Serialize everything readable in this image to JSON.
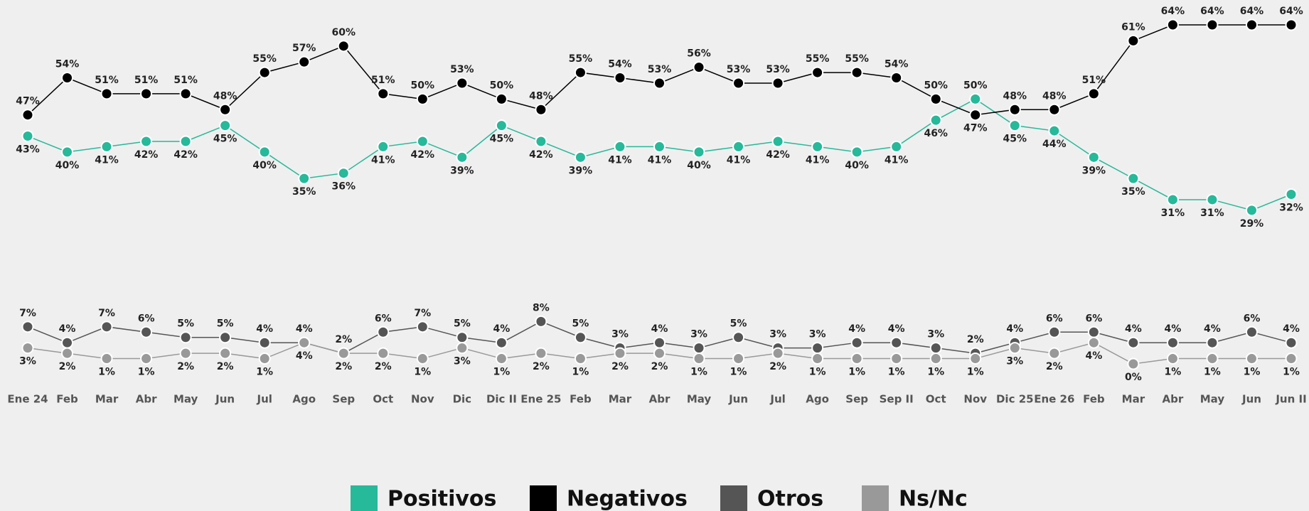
{
  "chart_data": {
    "type": "line",
    "categories": [
      "Ene 24",
      "Feb",
      "Mar",
      "Abr",
      "May",
      "Jun",
      "Jul",
      "Ago",
      "Sep",
      "Oct",
      "Nov",
      "Dic",
      "Dic II",
      "Ene 25",
      "Feb",
      "Mar",
      "Abr",
      "May",
      "Jun",
      "Jul",
      "Ago",
      "Sep",
      "Sep II",
      "Oct",
      "Nov",
      "Dic 25",
      "Ene 26",
      "Feb",
      "Mar",
      "Abr",
      "May",
      "Jun",
      "Jun II"
    ],
    "ylim": [
      0,
      64
    ],
    "series": [
      {
        "name": "Positivos",
        "color": "#26b99a",
        "values": [
          43,
          40,
          41,
          42,
          42,
          45,
          40,
          35,
          36,
          41,
          42,
          39,
          45,
          42,
          39,
          41,
          41,
          40,
          41,
          42,
          41,
          40,
          41,
          46,
          50,
          45,
          44,
          39,
          35,
          31,
          31,
          29,
          32
        ],
        "value_labels": [
          "43%",
          "40%",
          "41%",
          "42%",
          "42%",
          "45%",
          "40%",
          "35%",
          "36%",
          "41%",
          "42%",
          "39%",
          "45%",
          "42%",
          "39%",
          "41%",
          "41%",
          "40%",
          "41%",
          "42%",
          "41%",
          "40%",
          "41%",
          "46%",
          "50%",
          "45%",
          "44%",
          "39%",
          "35%",
          "31%",
          "31%",
          "29%",
          "32%"
        ]
      },
      {
        "name": "Negativos",
        "color": "#000000",
        "values": [
          47,
          54,
          51,
          51,
          51,
          48,
          55,
          57,
          60,
          51,
          50,
          53,
          50,
          48,
          55,
          54,
          53,
          56,
          53,
          53,
          55,
          55,
          54,
          50,
          47,
          48,
          48,
          51,
          61,
          64,
          64,
          64,
          64
        ],
        "value_labels": [
          "47%",
          "54%",
          "51%",
          "51%",
          "51%",
          "48%",
          "55%",
          "57%",
          "60%",
          "51%",
          "50%",
          "53%",
          "50%",
          "48%",
          "55%",
          "54%",
          "53%",
          "56%",
          "53%",
          "53%",
          "55%",
          "55%",
          "54%",
          "50%",
          "47%",
          "48%",
          "48%",
          "51%",
          "61%",
          "64%",
          "64%",
          "64%",
          "64%"
        ]
      },
      {
        "name": "Otros",
        "color": "#555555",
        "values": [
          7,
          4,
          7,
          6,
          5,
          5,
          4,
          4,
          2,
          6,
          7,
          5,
          4,
          8,
          5,
          3,
          4,
          3,
          5,
          3,
          3,
          4,
          4,
          3,
          2,
          4,
          6,
          6,
          4,
          4,
          4,
          6,
          4
        ],
        "value_labels": [
          "7%",
          "4%",
          "7%",
          "6%",
          "5%",
          "5%",
          "4%",
          "4%",
          "2%",
          "6%",
          "7%",
          "5%",
          "4%",
          "8%",
          "5%",
          "3%",
          "4%",
          "3%",
          "5%",
          "3%",
          "3%",
          "4%",
          "4%",
          "3%",
          "2%",
          "4%",
          "6%",
          "6%",
          "4%",
          "4%",
          "4%",
          "6%",
          "4%"
        ]
      },
      {
        "name": "Ns/Nc",
        "color": "#999999",
        "values": [
          3,
          2,
          1,
          1,
          2,
          2,
          1,
          4,
          2,
          2,
          1,
          3,
          1,
          2,
          1,
          2,
          2,
          1,
          1,
          2,
          1,
          1,
          1,
          1,
          1,
          3,
          2,
          4,
          0,
          1,
          1,
          1,
          1
        ],
        "value_labels": [
          "3%",
          "2%",
          "1%",
          "1%",
          "2%",
          "2%",
          "1%",
          "4%",
          "2%",
          "2%",
          "1%",
          "3%",
          "1%",
          "2%",
          "1%",
          "2%",
          "2%",
          "1%",
          "1%",
          "2%",
          "1%",
          "1%",
          "1%",
          "1%",
          "1%",
          "3%",
          "2%",
          "4%",
          "0%",
          "1%",
          "1%",
          "1%",
          "1%"
        ]
      }
    ]
  }
}
